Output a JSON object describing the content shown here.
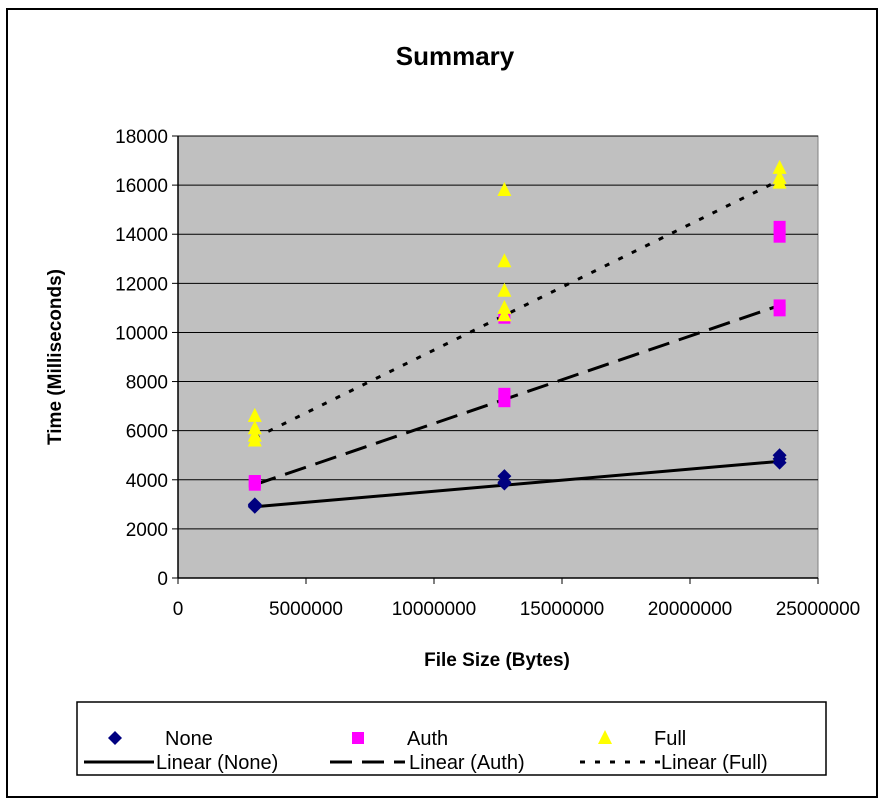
{
  "chart_data": {
    "type": "scatter",
    "title": "Summary",
    "xlabel": "File Size (Bytes)",
    "ylabel": "Time (Milliseconds)",
    "xlim": [
      0,
      25000000
    ],
    "ylim": [
      0,
      18000
    ],
    "xticks": [
      0,
      5000000,
      10000000,
      15000000,
      20000000,
      25000000
    ],
    "xtick_labels": [
      "0",
      "5000000",
      "10000000",
      "15000000",
      "20000000",
      "25000000"
    ],
    "yticks": [
      0,
      2000,
      4000,
      6000,
      8000,
      10000,
      12000,
      14000,
      16000,
      18000
    ],
    "ytick_labels": [
      "0",
      "2000",
      "4000",
      "6000",
      "8000",
      "10000",
      "12000",
      "14000",
      "16000",
      "18000"
    ],
    "grid": true,
    "plot_background": "#C0C0C0",
    "legend_position": "bottom",
    "series": [
      {
        "name": "None",
        "marker": "diamond",
        "color": "#000080",
        "points": [
          [
            3000000,
            2900
          ],
          [
            3000000,
            2950
          ],
          [
            3000000,
            3000
          ],
          [
            12750000,
            3850
          ],
          [
            12750000,
            3900
          ],
          [
            12750000,
            4150
          ],
          [
            23500000,
            4700
          ],
          [
            23500000,
            4850
          ],
          [
            23500000,
            5000
          ]
        ]
      },
      {
        "name": "Auth",
        "marker": "square",
        "color": "#FF00FF",
        "points": [
          [
            3000000,
            3800
          ],
          [
            3000000,
            3900
          ],
          [
            3000000,
            3950
          ],
          [
            12750000,
            7200
          ],
          [
            12750000,
            7400
          ],
          [
            12750000,
            7500
          ],
          [
            12750000,
            10600
          ],
          [
            23500000,
            10900
          ],
          [
            23500000,
            11100
          ],
          [
            23500000,
            13900
          ],
          [
            23500000,
            14300
          ]
        ]
      },
      {
        "name": "Full",
        "marker": "triangle",
        "color": "#FFFF00",
        "points": [
          [
            3000000,
            5600
          ],
          [
            3000000,
            5800
          ],
          [
            3000000,
            6100
          ],
          [
            3000000,
            6600
          ],
          [
            12750000,
            10700
          ],
          [
            12750000,
            11000
          ],
          [
            12750000,
            11700
          ],
          [
            12750000,
            12900
          ],
          [
            12750000,
            15800
          ],
          [
            23500000,
            16100
          ],
          [
            23500000,
            16300
          ],
          [
            23500000,
            16700
          ]
        ]
      }
    ],
    "trendlines": [
      {
        "name": "Linear (None)",
        "style": "solid",
        "color": "#000000",
        "x": [
          3000000,
          23500000
        ],
        "y": [
          2900,
          4750
        ]
      },
      {
        "name": "Linear (Auth)",
        "style": "dashed",
        "color": "#000000",
        "x": [
          3000000,
          23500000
        ],
        "y": [
          3800,
          11100
        ]
      },
      {
        "name": "Linear (Full)",
        "style": "dotted",
        "color": "#000000",
        "x": [
          3000000,
          23500000
        ],
        "y": [
          5700,
          16200
        ]
      }
    ]
  }
}
